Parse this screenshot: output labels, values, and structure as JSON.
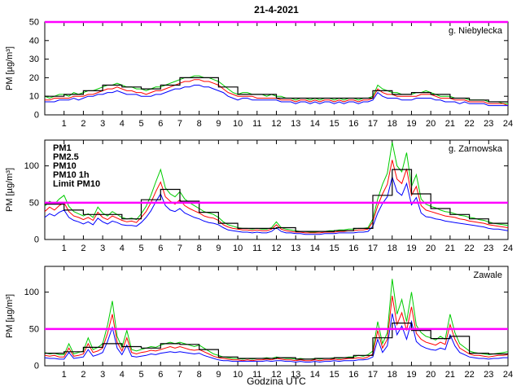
{
  "figure": {
    "title": "21-4-2021",
    "xlabel": "Godzina UTC",
    "ylabel": "PM [µg/m³]"
  },
  "legend": [
    {
      "label": "PM1",
      "color": "#0000ff"
    },
    {
      "label": "PM2.5",
      "color": "#ff0000"
    },
    {
      "label": "PM10",
      "color": "#00cc00"
    },
    {
      "label": "PM10 1h",
      "color": "#000000"
    },
    {
      "label": "Limit PM10",
      "color": "#ff00ff"
    }
  ],
  "chart_data": [
    {
      "type": "line",
      "id": "niebylecka",
      "title": "g. Niebylecka",
      "ylim": [
        0,
        50
      ],
      "yticks": [
        0,
        10,
        20,
        30,
        40,
        50
      ],
      "xticks": [
        1,
        2,
        3,
        4,
        5,
        6,
        7,
        8,
        9,
        10,
        11,
        12,
        13,
        14,
        15,
        16,
        17,
        18,
        19,
        20,
        21,
        22,
        23,
        24
      ],
      "x0": 0,
      "dx": 0.25,
      "limit": {
        "value": 50,
        "color": "#ff00ff"
      },
      "show_legend": false,
      "series": [
        {
          "name": "PM1",
          "color": "#0000ff",
          "values": [
            7,
            7,
            7,
            8,
            8,
            8,
            9,
            8,
            9,
            10,
            10,
            11,
            11,
            12,
            12,
            13,
            12,
            11,
            11,
            11,
            10,
            10,
            10,
            11,
            11,
            12,
            13,
            14,
            14,
            15,
            15,
            16,
            16,
            15,
            15,
            14,
            13,
            12,
            10,
            9,
            8,
            9,
            9,
            8,
            8,
            8,
            8,
            8,
            8,
            7,
            7,
            7,
            6,
            7,
            7,
            6,
            7,
            6,
            7,
            7,
            6,
            7,
            6,
            7,
            7,
            6,
            7,
            7,
            8,
            12,
            10,
            9,
            9,
            9,
            8,
            8,
            8,
            9,
            9,
            9,
            9,
            8,
            8,
            7,
            7,
            7,
            6,
            7,
            6,
            6,
            6,
            6,
            5,
            5,
            5,
            5,
            5
          ]
        },
        {
          "name": "PM2.5",
          "color": "#ff0000",
          "values": [
            8,
            8,
            9,
            9,
            9,
            9,
            10,
            10,
            10,
            11,
            11,
            12,
            13,
            14,
            14,
            15,
            14,
            13,
            13,
            12,
            12,
            11,
            12,
            13,
            13,
            14,
            15,
            16,
            17,
            18,
            18,
            19,
            19,
            18,
            18,
            17,
            16,
            14,
            12,
            11,
            10,
            10,
            10,
            10,
            9,
            9,
            9,
            9,
            9,
            8,
            8,
            8,
            7,
            8,
            8,
            7,
            8,
            7,
            8,
            8,
            7,
            8,
            7,
            8,
            8,
            7,
            8,
            8,
            9,
            14,
            12,
            11,
            11,
            10,
            10,
            10,
            10,
            10,
            11,
            11,
            11,
            10,
            9,
            9,
            9,
            8,
            8,
            8,
            7,
            7,
            7,
            7,
            6,
            6,
            6,
            6,
            5
          ]
        },
        {
          "name": "PM10",
          "color": "#00cc00",
          "values": [
            10,
            9,
            10,
            11,
            11,
            10,
            12,
            11,
            12,
            13,
            13,
            14,
            15,
            16,
            16,
            17,
            16,
            15,
            15,
            14,
            14,
            13,
            14,
            15,
            15,
            16,
            17,
            18,
            19,
            20,
            20,
            21,
            21,
            20,
            20,
            19,
            18,
            16,
            14,
            12,
            11,
            12,
            12,
            11,
            11,
            11,
            10,
            11,
            10,
            10,
            9,
            9,
            8,
            9,
            9,
            8,
            9,
            8,
            9,
            9,
            8,
            9,
            8,
            9,
            9,
            8,
            9,
            9,
            10,
            16,
            14,
            13,
            12,
            12,
            11,
            11,
            11,
            12,
            12,
            13,
            12,
            11,
            10,
            10,
            10,
            9,
            9,
            9,
            8,
            8,
            8,
            8,
            7,
            7,
            7,
            6,
            6
          ]
        },
        {
          "name": "PM10 1h",
          "color": "#000000",
          "type": "step",
          "dx": 1,
          "values": [
            10,
            11,
            13,
            16,
            15,
            14,
            16,
            20,
            20,
            15,
            11,
            11,
            9,
            9,
            9,
            9,
            9,
            13,
            11,
            12,
            11,
            9,
            8,
            7
          ]
        }
      ]
    },
    {
      "type": "line",
      "id": "zarnowska",
      "title": "g. Zarnowska",
      "ylim": [
        0,
        135
      ],
      "yticks": [
        0,
        50,
        100
      ],
      "xticks": [
        1,
        2,
        3,
        4,
        5,
        6,
        7,
        8,
        9,
        10,
        11,
        12,
        13,
        14,
        15,
        16,
        17,
        18,
        19,
        20,
        21,
        22,
        23,
        24
      ],
      "x0": 0,
      "dx": 0.25,
      "limit": {
        "value": 50,
        "color": "#ff00ff"
      },
      "show_legend": true,
      "series": [
        {
          "name": "PM1",
          "color": "#0000ff",
          "values": [
            30,
            35,
            32,
            37,
            40,
            30,
            26,
            24,
            21,
            24,
            20,
            29,
            24,
            21,
            25,
            23,
            20,
            19,
            19,
            18,
            23,
            30,
            39,
            51,
            62,
            46,
            40,
            38,
            42,
            36,
            33,
            30,
            28,
            25,
            23,
            22,
            20,
            16,
            13,
            12,
            11,
            10,
            10,
            9,
            10,
            9,
            9,
            11,
            16,
            11,
            9,
            9,
            8,
            8,
            7,
            7,
            7,
            7,
            8,
            8,
            8,
            9,
            9,
            9,
            9,
            10,
            10,
            11,
            18,
            36,
            49,
            58,
            85,
            65,
            60,
            76,
            47,
            57,
            36,
            31,
            30,
            28,
            27,
            25,
            24,
            23,
            22,
            21,
            20,
            19,
            18,
            17,
            15,
            14,
            14,
            13,
            12
          ]
        },
        {
          "name": "PM2.5",
          "color": "#ff0000",
          "values": [
            38,
            44,
            40,
            46,
            50,
            38,
            32,
            30,
            27,
            30,
            26,
            37,
            30,
            27,
            32,
            29,
            26,
            24,
            25,
            23,
            30,
            38,
            50,
            65,
            78,
            58,
            52,
            48,
            54,
            46,
            42,
            39,
            36,
            32,
            30,
            29,
            26,
            20,
            17,
            15,
            14,
            13,
            13,
            12,
            13,
            12,
            12,
            14,
            20,
            14,
            12,
            11,
            10,
            10,
            9,
            9,
            9,
            9,
            10,
            10,
            10,
            11,
            11,
            12,
            12,
            13,
            13,
            14,
            24,
            46,
            62,
            75,
            108,
            82,
            76,
            96,
            60,
            72,
            46,
            40,
            38,
            36,
            34,
            32,
            31,
            30,
            28,
            27,
            25,
            24,
            23,
            22,
            20,
            19,
            18,
            17,
            16
          ]
        },
        {
          "name": "PM10",
          "color": "#00cc00",
          "values": [
            45,
            52,
            48,
            55,
            60,
            45,
            38,
            35,
            32,
            35,
            30,
            44,
            36,
            32,
            38,
            34,
            30,
            28,
            29,
            27,
            35,
            45,
            60,
            78,
            95,
            70,
            62,
            58,
            65,
            55,
            50,
            46,
            42,
            38,
            36,
            34,
            30,
            24,
            20,
            18,
            16,
            15,
            15,
            14,
            15,
            14,
            14,
            16,
            24,
            16,
            14,
            13,
            12,
            11,
            11,
            10,
            10,
            11,
            11,
            12,
            12,
            13,
            13,
            14,
            14,
            15,
            15,
            16,
            28,
            55,
            75,
            90,
            132,
            100,
            92,
            118,
            72,
            88,
            55,
            48,
            45,
            43,
            40,
            38,
            37,
            35,
            33,
            32,
            30,
            29,
            27,
            26,
            24,
            22,
            21,
            20,
            19
          ]
        },
        {
          "name": "PM10 1h",
          "color": "#000000",
          "type": "step",
          "dx": 1,
          "values": [
            48,
            40,
            34,
            34,
            28,
            54,
            68,
            52,
            37,
            22,
            15,
            15,
            16,
            11,
            11,
            12,
            15,
            60,
            95,
            62,
            42,
            34,
            28,
            22
          ]
        }
      ]
    },
    {
      "type": "line",
      "id": "zawale",
      "title": "Zawale",
      "ylim": [
        0,
        135
      ],
      "yticks": [
        0,
        50,
        100
      ],
      "xticks": [
        1,
        2,
        3,
        4,
        5,
        6,
        7,
        8,
        9,
        10,
        11,
        12,
        13,
        14,
        15,
        16,
        17,
        18,
        19,
        20,
        21,
        22,
        23,
        24
      ],
      "x0": 0,
      "dx": 0.25,
      "limit": {
        "value": 50,
        "color": "#ff00ff"
      },
      "show_legend": false,
      "series": [
        {
          "name": "PM1",
          "color": "#0000ff",
          "values": [
            11,
            10,
            10,
            9,
            9,
            18,
            10,
            11,
            12,
            22,
            13,
            15,
            18,
            33,
            52,
            24,
            15,
            28,
            13,
            12,
            13,
            14,
            16,
            15,
            17,
            18,
            19,
            18,
            19,
            18,
            17,
            16,
            17,
            14,
            12,
            10,
            8,
            7,
            7,
            6,
            6,
            6,
            6,
            6,
            6,
            6,
            7,
            6,
            7,
            7,
            6,
            6,
            5,
            6,
            5,
            5,
            6,
            5,
            6,
            6,
            7,
            6,
            7,
            7,
            7,
            8,
            8,
            9,
            12,
            36,
            18,
            27,
            71,
            42,
            54,
            36,
            60,
            33,
            27,
            24,
            22,
            21,
            24,
            22,
            42,
            27,
            18,
            15,
            12,
            11,
            10,
            10,
            9,
            10,
            10,
            11,
            11
          ]
        },
        {
          "name": "PM2.5",
          "color": "#ff0000",
          "values": [
            14,
            13,
            14,
            12,
            12,
            24,
            13,
            14,
            16,
            30,
            18,
            20,
            24,
            44,
            70,
            32,
            20,
            38,
            18,
            16,
            18,
            19,
            21,
            20,
            22,
            24,
            26,
            24,
            26,
            24,
            22,
            21,
            22,
            19,
            16,
            13,
            11,
            10,
            9,
            8,
            8,
            7,
            8,
            7,
            8,
            8,
            9,
            8,
            10,
            9,
            8,
            8,
            7,
            8,
            7,
            7,
            8,
            7,
            8,
            8,
            9,
            8,
            9,
            10,
            10,
            11,
            10,
            12,
            16,
            48,
            24,
            36,
            95,
            56,
            72,
            48,
            80,
            44,
            36,
            32,
            30,
            28,
            32,
            29,
            56,
            36,
            24,
            20,
            16,
            14,
            14,
            13,
            12,
            13,
            14,
            14,
            15
          ]
        },
        {
          "name": "PM10",
          "color": "#00cc00",
          "values": [
            18,
            16,
            17,
            15,
            15,
            30,
            16,
            18,
            20,
            38,
            22,
            25,
            30,
            55,
            88,
            40,
            25,
            48,
            22,
            20,
            22,
            24,
            26,
            25,
            28,
            30,
            32,
            30,
            32,
            30,
            28,
            26,
            28,
            24,
            20,
            16,
            14,
            12,
            11,
            10,
            10,
            9,
            10,
            9,
            10,
            10,
            11,
            10,
            12,
            11,
            10,
            10,
            9,
            10,
            9,
            9,
            10,
            9,
            10,
            10,
            11,
            10,
            11,
            12,
            12,
            14,
            13,
            15,
            20,
            60,
            30,
            45,
            118,
            70,
            90,
            60,
            100,
            55,
            45,
            40,
            38,
            35,
            40,
            36,
            70,
            45,
            30,
            25,
            20,
            18,
            17,
            16,
            15,
            16,
            17,
            18,
            19
          ]
        },
        {
          "name": "PM10 1h",
          "color": "#000000",
          "type": "step",
          "dx": 1,
          "values": [
            17,
            19,
            25,
            30,
            26,
            24,
            30,
            29,
            22,
            12,
            10,
            10,
            11,
            9,
            10,
            11,
            14,
            38,
            58,
            48,
            37,
            40,
            17,
            16
          ]
        }
      ]
    }
  ]
}
